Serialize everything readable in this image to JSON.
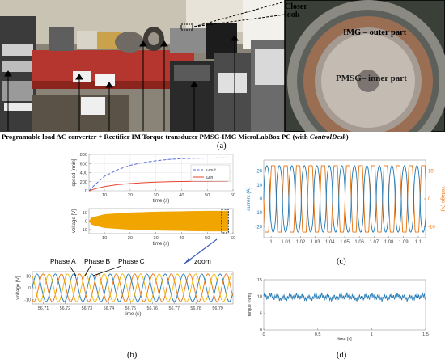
{
  "photo": {
    "closer_look": "Closer look",
    "img_label": "IMG – outer part",
    "pmsg_label": "PMSG– inner part"
  },
  "caption_a": {
    "prefix": "Programable load AC converter + Rectifier IM Torque transducer PMSG-IMG MicroLabBox PC (with ",
    "italic": "ControlDesk",
    "suffix": ")",
    "tag": "(a)"
  },
  "tags": {
    "b": "(b)",
    "c": "(c)",
    "d": "(d)"
  },
  "panel_b": {
    "phase_a": "Phase A",
    "phase_b": "Phase B",
    "phase_c": "Phase C",
    "zoom": "zoom"
  },
  "colors": {
    "blue": "#1f77b4",
    "orange": "#e8730c",
    "amber": "#f0a500",
    "red": "#e8442e",
    "dash_blue": "#5a6ed8"
  },
  "chart_data": [
    {
      "type": "line",
      "id": "speed",
      "xlabel": "time (s)",
      "ylabel": "speed [rmin]",
      "xlim": [
        4,
        60
      ],
      "ylim": [
        0,
        800
      ],
      "xticks": [
        10,
        20,
        30,
        40,
        50,
        60
      ],
      "yticks": [
        0,
        200,
        400,
        600,
        800
      ],
      "legend": [
        "ωout",
        "ωin"
      ],
      "series": [
        {
          "name": "ωout",
          "x": [
            4,
            6,
            10,
            15,
            20,
            25,
            30,
            35,
            40,
            45,
            50,
            55,
            58
          ],
          "y": [
            0,
            120,
            320,
            460,
            560,
            620,
            660,
            690,
            705,
            715,
            720,
            722,
            724
          ]
        },
        {
          "name": "ωin",
          "x": [
            4,
            6,
            10,
            15,
            20,
            25,
            30,
            35,
            40,
            45,
            50,
            55,
            58
          ],
          "y": [
            0,
            40,
            95,
            135,
            160,
            178,
            190,
            200,
            205,
            208,
            210,
            211,
            212
          ]
        }
      ]
    },
    {
      "type": "area",
      "id": "voltage",
      "xlabel": "time (s)",
      "ylabel": "voltage [V]",
      "xlim": [
        4,
        60
      ],
      "ylim": [
        -15,
        15
      ],
      "xticks": [
        10,
        20,
        30,
        40,
        50,
        60
      ],
      "yticks": [
        -10,
        0,
        10
      ],
      "envelope": {
        "x": [
          4,
          5,
          10,
          20,
          30,
          40,
          50,
          58
        ],
        "y": [
          0,
          4,
          8,
          10,
          11,
          11.5,
          12,
          12
        ]
      }
    },
    {
      "type": "line",
      "id": "zoom",
      "xlabel": "time (s)",
      "ylabel": "voltage [V]",
      "xlim": [
        56.705,
        56.797
      ],
      "ylim": [
        -14,
        14
      ],
      "xticks": [
        56.71,
        56.72,
        56.73,
        56.74,
        56.75,
        56.76,
        56.77,
        56.78,
        56.79
      ],
      "yticks": [
        -10,
        0,
        10
      ],
      "amplitude": 12,
      "period_s": 0.0084,
      "series": [
        {
          "name": "Phase A"
        },
        {
          "name": "Phase B"
        },
        {
          "name": "Phase C"
        }
      ]
    },
    {
      "type": "line",
      "id": "current_voltage",
      "xlabel": "",
      "ylabel": "current (A)",
      "y2label": "voltage (V)",
      "xlim": [
        0.995,
        1.105
      ],
      "ylim": [
        -28,
        28
      ],
      "y2lim": [
        -14,
        14
      ],
      "xticks": [
        1,
        1.01,
        1.02,
        1.03,
        1.04,
        1.05,
        1.06,
        1.07,
        1.08,
        1.09,
        1.1
      ],
      "yticks": [
        -20,
        -10,
        0,
        10,
        20
      ],
      "y2ticks": [
        -10,
        0,
        10
      ],
      "series": [
        {
          "name": "current",
          "amplitude": 24,
          "period_s": 0.0085
        },
        {
          "name": "voltage",
          "amplitude": 12,
          "period_s": 0.0085
        }
      ]
    },
    {
      "type": "line",
      "id": "torque",
      "xlabel": "time [s]",
      "ylabel": "torque (Nm)",
      "xlim": [
        0,
        1.5
      ],
      "ylim": [
        0,
        15
      ],
      "xticks": [
        0,
        0.5,
        1,
        1.5
      ],
      "yticks": [
        0,
        5,
        10,
        15
      ],
      "mean": 9.8,
      "ripple": 1.2
    }
  ]
}
